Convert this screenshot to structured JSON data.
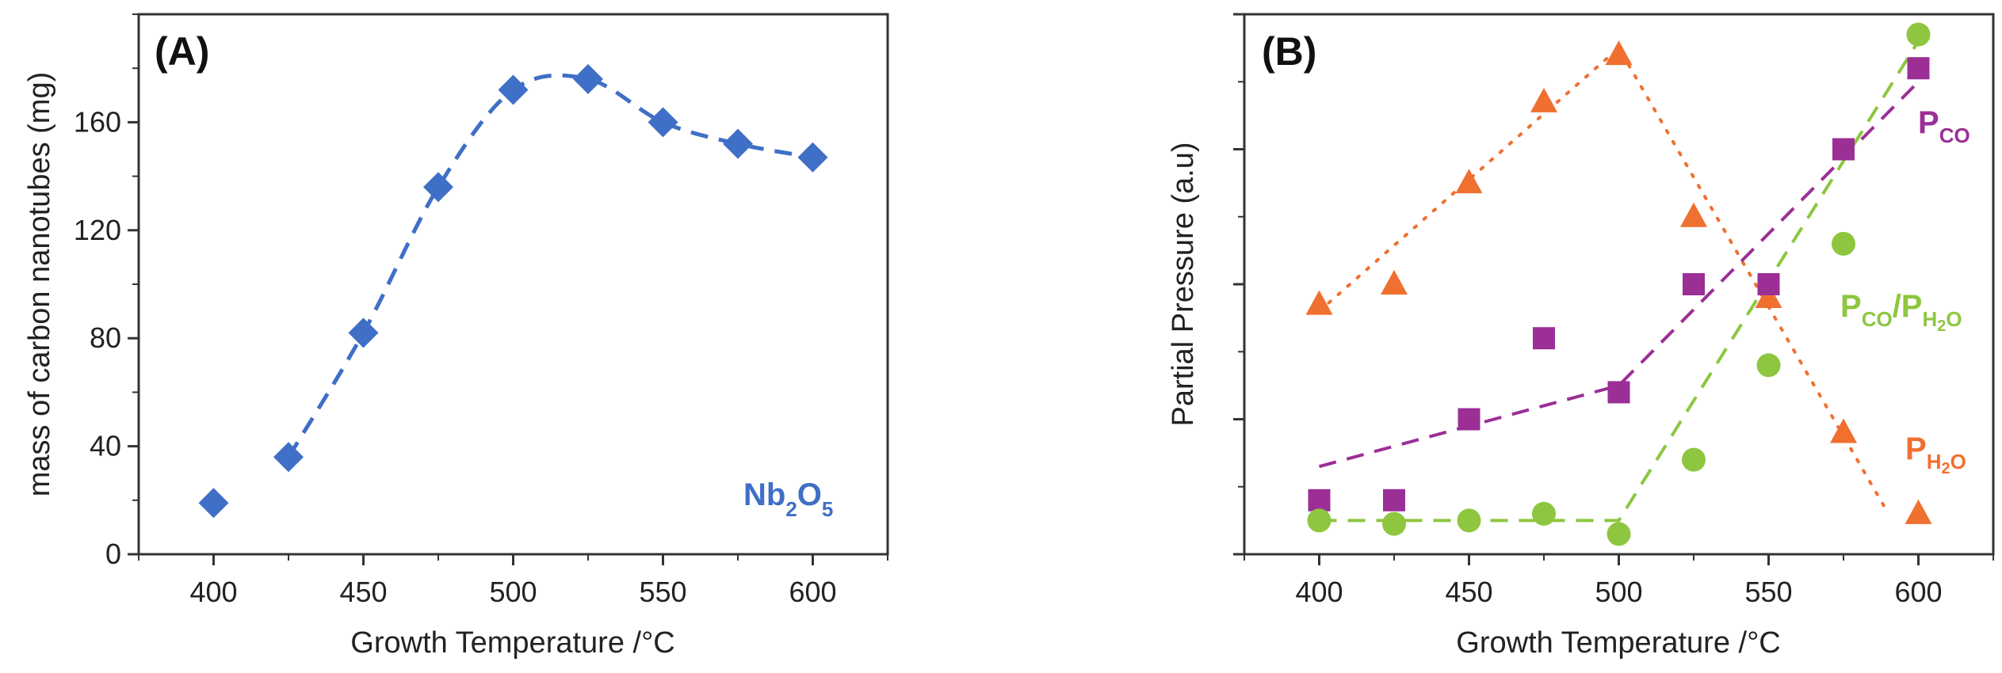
{
  "chart_data": [
    {
      "type": "scatter",
      "panel_label": "(A)",
      "xlabel": "Growth Temperature /°C",
      "ylabel": "mass of carbon nanotubes (mg)",
      "xlim": [
        375,
        625
      ],
      "ylim": [
        0,
        200
      ],
      "xticks": [
        400,
        450,
        500,
        550,
        600
      ],
      "yticks": [
        0,
        40,
        80,
        120,
        160
      ],
      "annotation": {
        "main": "Nb",
        "sub1": "2",
        "mid": "O",
        "sub2": "5"
      },
      "series": [
        {
          "name": "Nb2O5",
          "marker": "diamond",
          "color": "#3f6fc6",
          "fit": "dashed",
          "x": [
            400,
            425,
            450,
            475,
            500,
            525,
            550,
            575,
            600
          ],
          "y": [
            19,
            36,
            82,
            136,
            172,
            176,
            160,
            152,
            147
          ]
        }
      ]
    },
    {
      "type": "scatter",
      "panel_label": "(B)",
      "xlabel": "Growth Temperature /°C",
      "ylabel": "Partial Pressure (a.u)",
      "xlim": [
        375,
        625
      ],
      "ylim": [
        0,
        8
      ],
      "xticks": [
        400,
        450,
        500,
        550,
        600
      ],
      "annotations": {
        "pco": {
          "main": "P",
          "sub": "CO"
        },
        "ratio": {
          "main": "P",
          "sub1": "CO",
          "slash": "/P",
          "sub2": "H",
          "sub3": "2",
          "sub4": "O"
        },
        "ph2o": {
          "main": "P",
          "sub1": "H",
          "sub2": "2",
          "sub3": "O"
        }
      },
      "series": [
        {
          "name": "PH2O",
          "marker": "triangle",
          "color": "#f07030",
          "fit": "dotted",
          "x": [
            400,
            425,
            450,
            475,
            500,
            525,
            550,
            575,
            600
          ],
          "y": [
            3.7,
            4.0,
            5.5,
            6.7,
            7.4,
            5.0,
            3.8,
            1.8,
            0.6
          ]
        },
        {
          "name": "PCO",
          "marker": "square",
          "color": "#9b2f96",
          "fit": "dashed",
          "x": [
            400,
            425,
            450,
            475,
            500,
            525,
            550,
            575,
            600
          ],
          "y": [
            0.8,
            0.8,
            2.0,
            3.2,
            2.4,
            4.0,
            4.0,
            6.0,
            7.2
          ]
        },
        {
          "name": "PCO/PH2O",
          "marker": "circle",
          "color": "#8ec63f",
          "fit": "dashed",
          "x": [
            400,
            425,
            450,
            475,
            500,
            525,
            550,
            575,
            600
          ],
          "y": [
            0.5,
            0.45,
            0.5,
            0.6,
            0.3,
            1.4,
            2.8,
            4.6,
            7.7
          ]
        }
      ]
    }
  ]
}
